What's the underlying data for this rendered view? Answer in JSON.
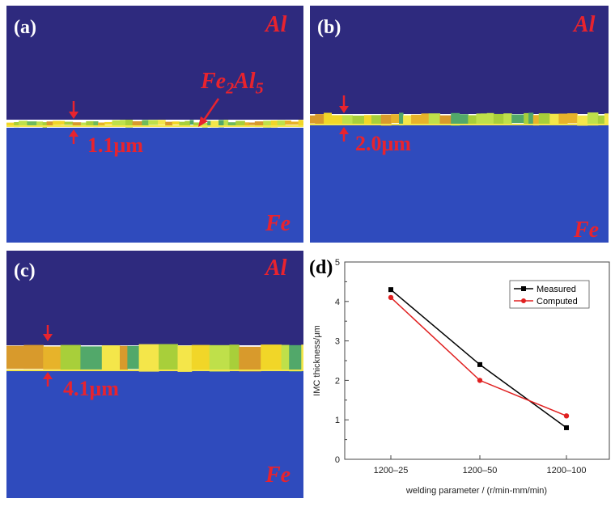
{
  "panels": {
    "a": {
      "label": "(a)",
      "top_material": "Al",
      "bottom_material": "Fe",
      "thickness_label": "1.1μm",
      "phase": {
        "base": "Fe",
        "sub1": "2",
        "mid": "Al",
        "sub2": "5"
      }
    },
    "b": {
      "label": "(b)",
      "top_material": "Al",
      "bottom_material": "Fe",
      "thickness_label": "2.0μm"
    },
    "c": {
      "label": "(c)",
      "top_material": "Al",
      "bottom_material": "Fe",
      "thickness_label": "4.1μm"
    },
    "d": {
      "label": "(d)"
    }
  },
  "colors": {
    "al_region": "#2e2a7e",
    "fe_region": "#2f4bbd",
    "annotation": "#e8232e",
    "measured": "#000000",
    "computed": "#e02020"
  },
  "chart_data": {
    "type": "line",
    "categories": [
      "1200–25",
      "1200–50",
      "1200–100"
    ],
    "series": [
      {
        "name": "Measured",
        "values": [
          4.3,
          2.4,
          0.8
        ],
        "color": "#000000"
      },
      {
        "name": "Computed",
        "values": [
          4.1,
          2.0,
          1.1
        ],
        "color": "#e02020"
      }
    ],
    "xlabel": "welding parameter / (r/min-mm/min)",
    "ylabel": "IMC thickness/μm",
    "ylim": [
      0,
      5
    ],
    "yticks": [
      0,
      1,
      2,
      3,
      4,
      5
    ],
    "legend_position": "top-right",
    "grid": false
  }
}
